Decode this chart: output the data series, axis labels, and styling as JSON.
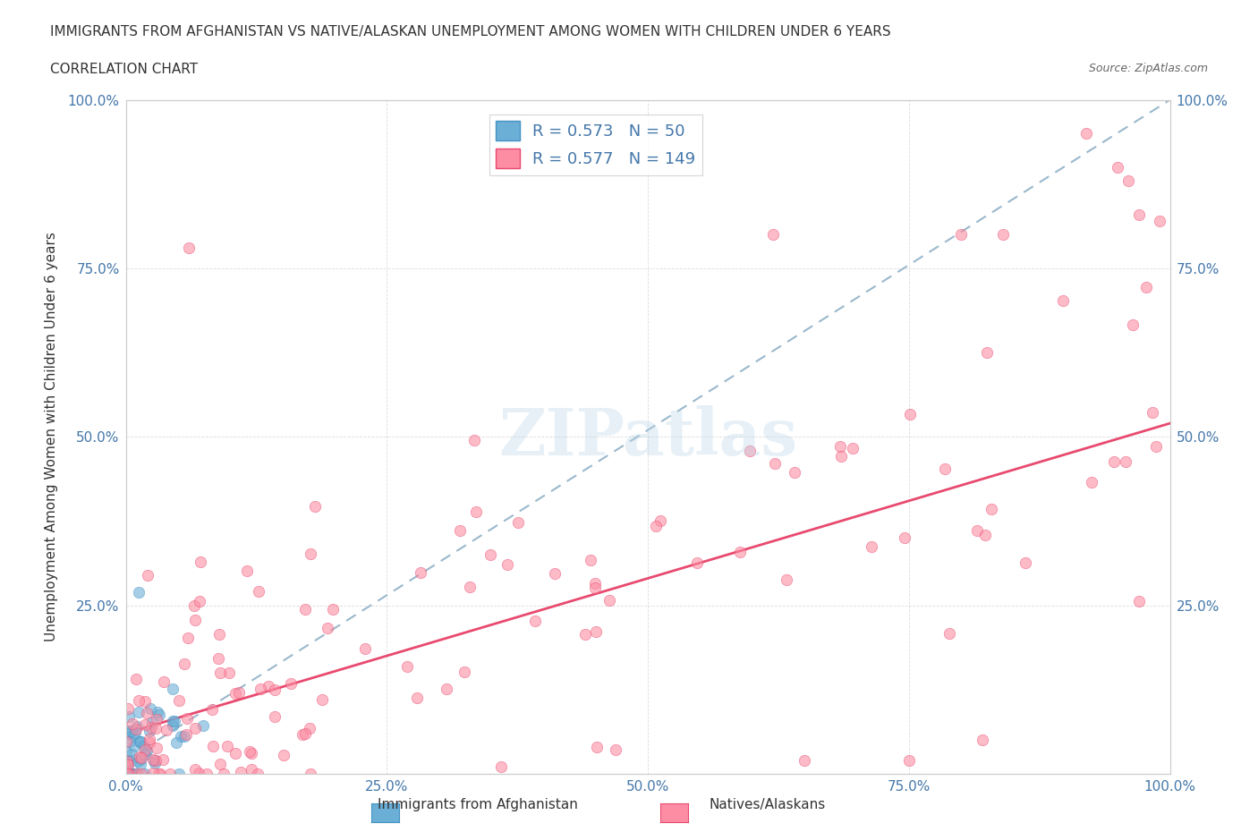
{
  "title_line1": "IMMIGRANTS FROM AFGHANISTAN VS NATIVE/ALASKAN UNEMPLOYMENT AMONG WOMEN WITH CHILDREN UNDER 6 YEARS",
  "title_line2": "CORRELATION CHART",
  "source_text": "Source: ZipAtlas.com",
  "xlabel": "Immigrants from Afghanistan",
  "ylabel": "Unemployment Among Women with Children Under 6 years",
  "xlim": [
    0,
    1.0
  ],
  "ylim": [
    0,
    1.0
  ],
  "xticks": [
    0,
    0.25,
    0.5,
    0.75,
    1.0
  ],
  "xticklabels": [
    "0.0%",
    "25.0%",
    "50.0%",
    "75.0%",
    "100.0%"
  ],
  "yticks": [
    0,
    0.25,
    0.5,
    0.75,
    1.0
  ],
  "yticklabels": [
    "",
    "25.0%",
    "50.0%",
    "75.0%",
    "100.0%"
  ],
  "color_blue": "#6baed6",
  "color_pink": "#fc8da3",
  "line_blue": "#4393c3",
  "line_pink": "#e84a6f",
  "R_blue": 0.573,
  "N_blue": 50,
  "R_pink": 0.577,
  "N_pink": 149,
  "legend_label_blue": "Immigrants from Afghanistan",
  "legend_label_pink": "Natives/Alaskans",
  "watermark": "ZIPatlas",
  "background_color": "#ffffff",
  "blue_intercept": 0.02,
  "blue_slope": 0.98,
  "pink_intercept": 0.06,
  "pink_slope": 0.46
}
